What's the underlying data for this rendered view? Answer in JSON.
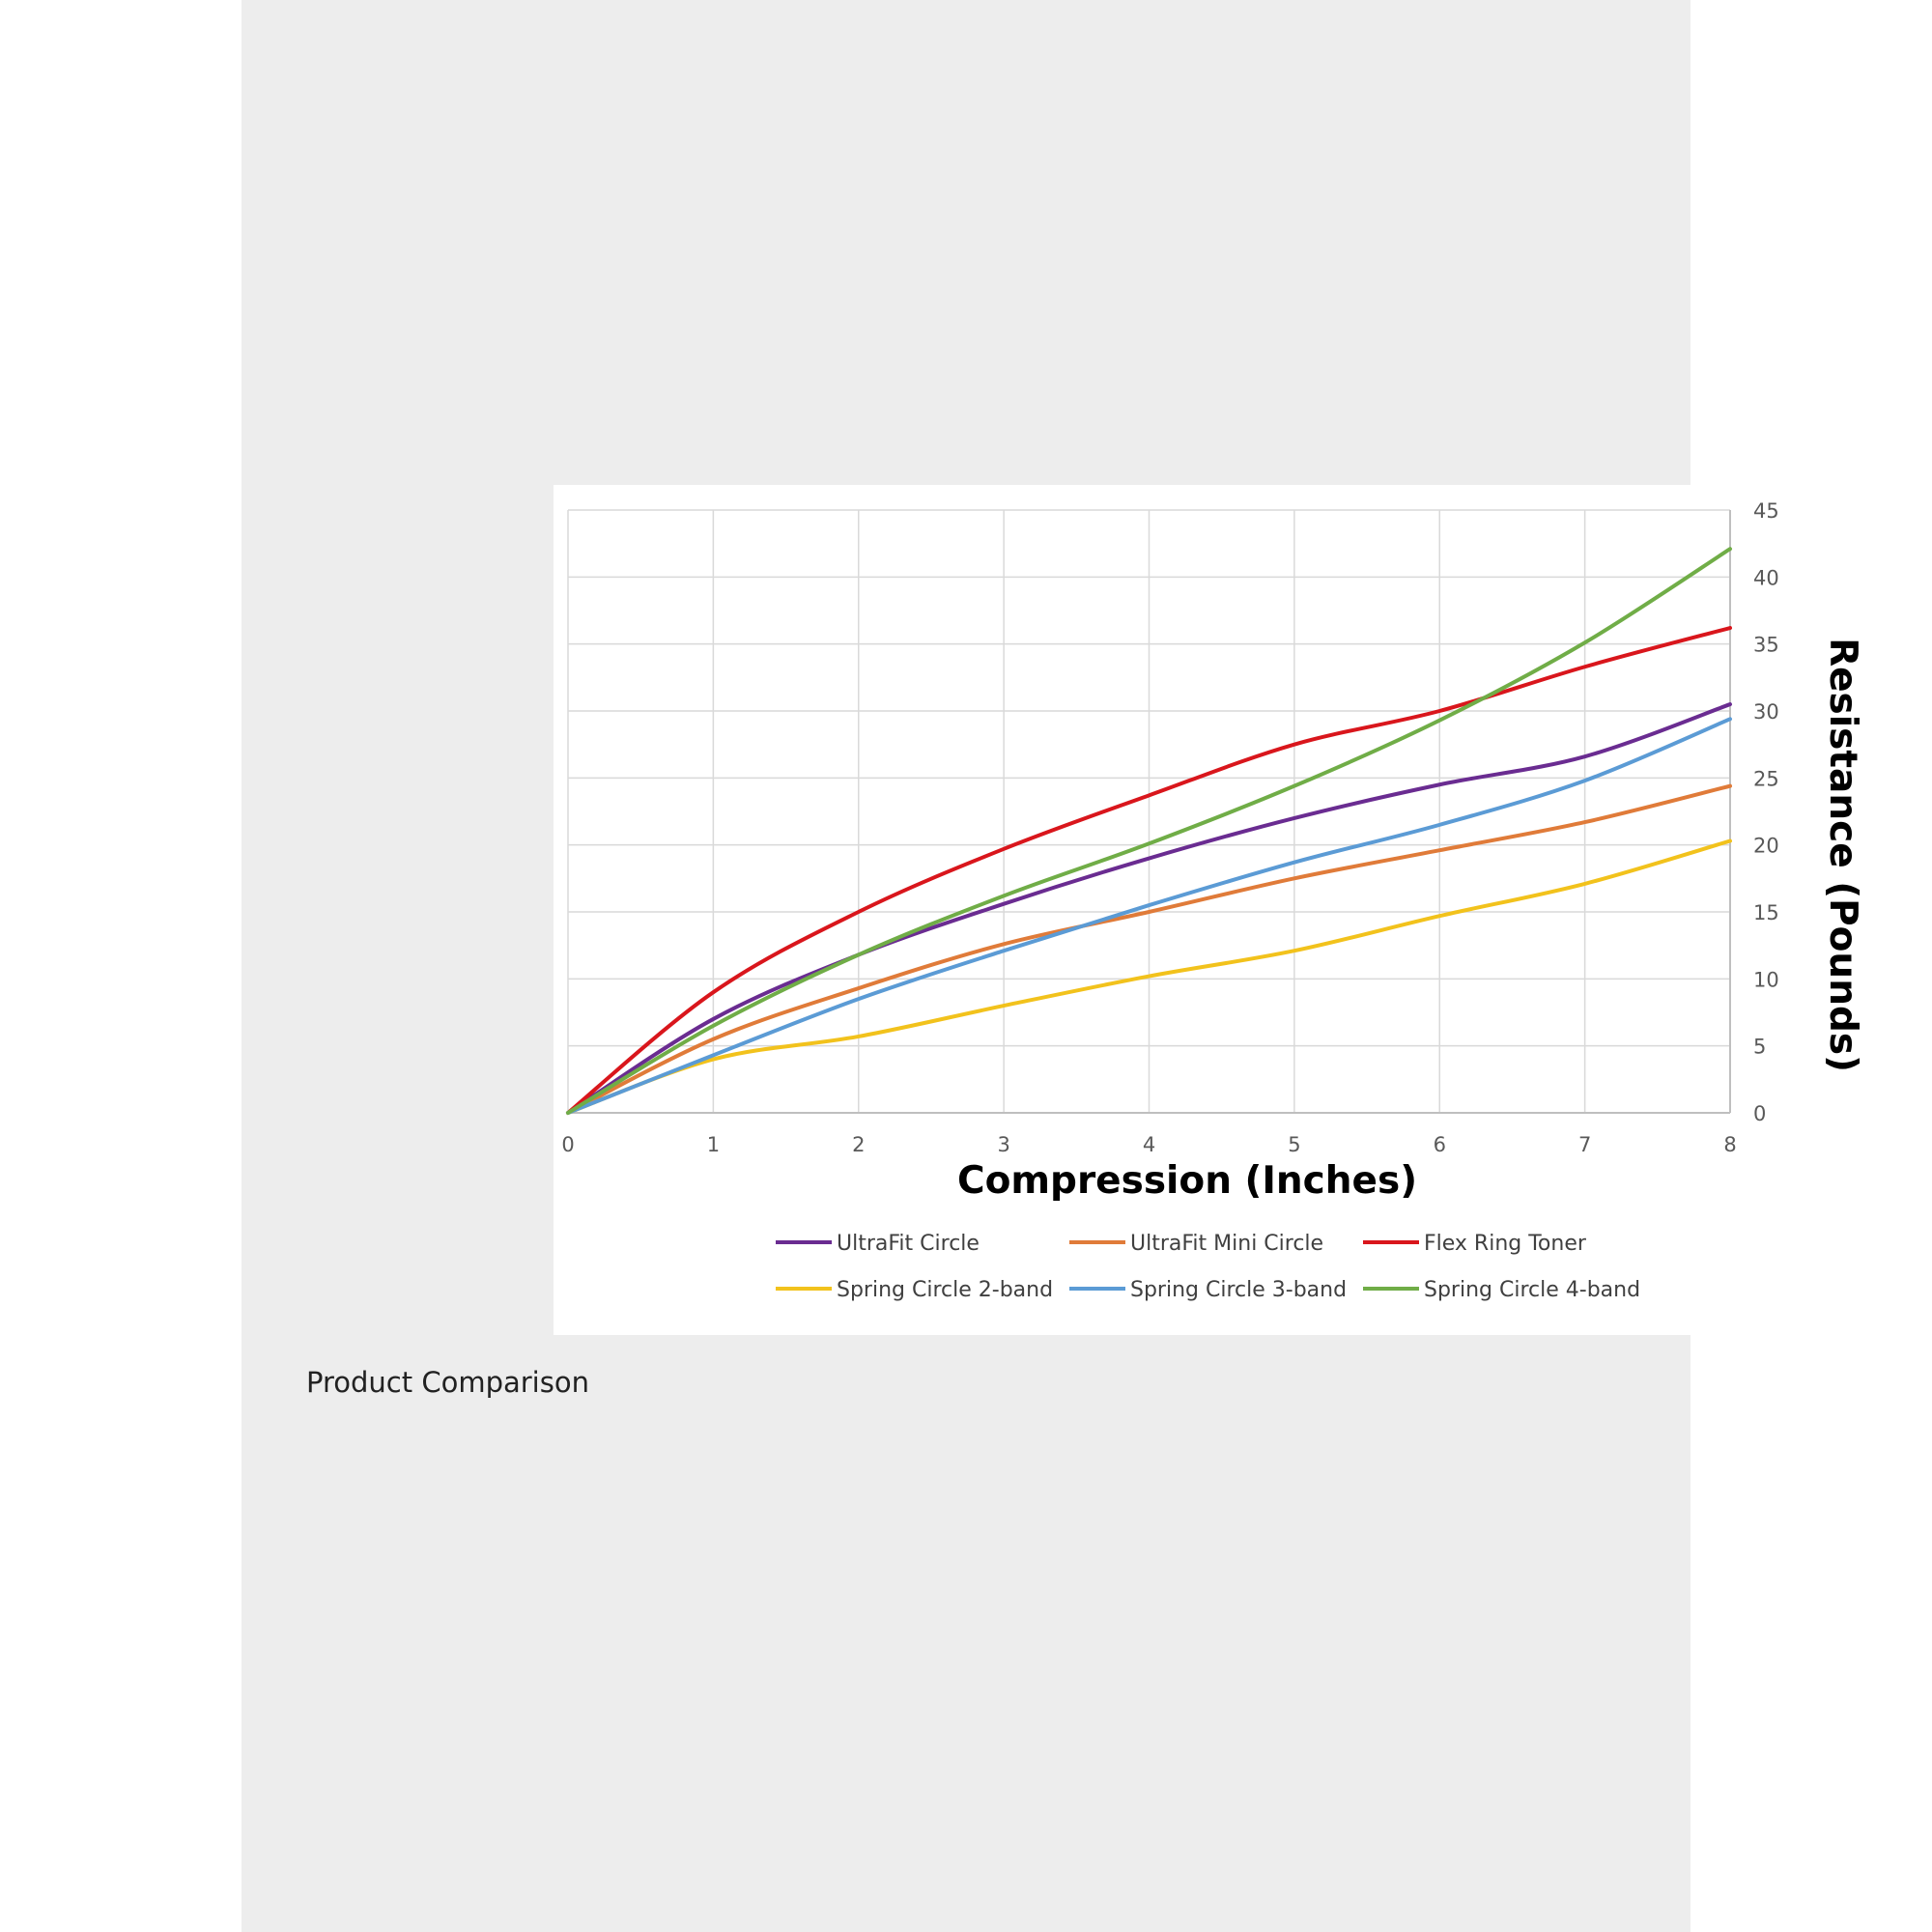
{
  "caption": "Product Comparison",
  "chart_data": {
    "type": "line",
    "x": [
      0,
      1,
      2,
      3,
      4,
      5,
      6,
      7,
      8
    ],
    "xlabel": "Compression (Inches)",
    "ylabel": "Resistance (Pounds)",
    "xlim": [
      0,
      8
    ],
    "ylim": [
      0,
      45
    ],
    "x_ticks": [
      "0",
      "1",
      "2",
      "3",
      "4",
      "5",
      "6",
      "7",
      "8"
    ],
    "y_ticks": [
      "0",
      "5",
      "10",
      "15",
      "20",
      "25",
      "30",
      "35",
      "40",
      "45"
    ],
    "y_axis_side": "right",
    "grid": true,
    "legend_position": "bottom",
    "series": [
      {
        "name": "UltraFit Circle",
        "color": "#6a2c91",
        "values": [
          0,
          7.0,
          11.8,
          15.6,
          19.0,
          22.0,
          24.5,
          26.6,
          30.5
        ]
      },
      {
        "name": "UltraFit Mini Circle",
        "color": "#e07b39",
        "values": [
          0,
          5.5,
          9.3,
          12.6,
          15.0,
          17.5,
          19.6,
          21.7,
          24.4
        ]
      },
      {
        "name": "Flex Ring Toner",
        "color": "#d9161c",
        "values": [
          0,
          9.0,
          15.0,
          19.7,
          23.7,
          27.5,
          30.0,
          33.3,
          36.2
        ]
      },
      {
        "name": "Spring Circle 2-band",
        "color": "#f2c21c",
        "values": [
          0,
          4.0,
          5.7,
          8.0,
          10.2,
          12.1,
          14.7,
          17.1,
          20.3
        ]
      },
      {
        "name": "Spring Circle 3-band",
        "color": "#5b9bd5",
        "values": [
          0,
          4.3,
          8.5,
          12.1,
          15.5,
          18.7,
          21.5,
          24.8,
          29.4
        ]
      },
      {
        "name": "Spring Circle 4-band",
        "color": "#70ad47",
        "values": [
          0,
          6.5,
          11.8,
          16.2,
          20.1,
          24.4,
          29.3,
          35.1,
          42.1
        ]
      }
    ]
  }
}
